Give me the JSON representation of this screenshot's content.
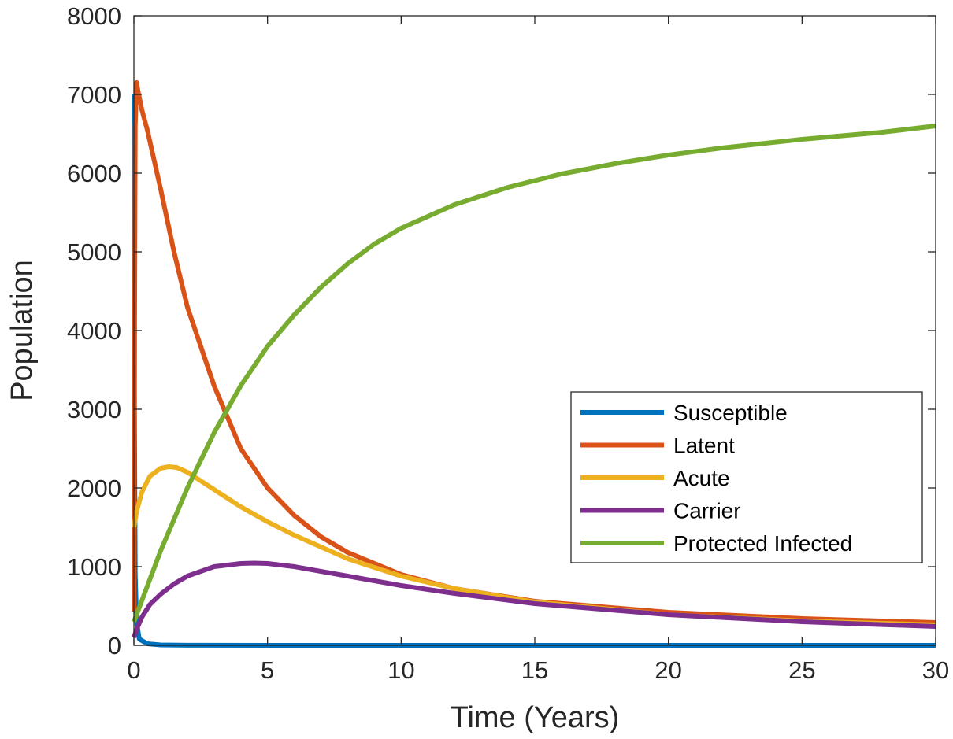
{
  "chart_data": {
    "type": "line",
    "title": "",
    "xlabel": "Time (Years)",
    "ylabel": "Population",
    "xlim": [
      0,
      30
    ],
    "ylim": [
      0,
      8000
    ],
    "xticks": [
      0,
      5,
      10,
      15,
      20,
      25,
      30
    ],
    "yticks": [
      0,
      1000,
      2000,
      3000,
      4000,
      5000,
      6000,
      7000,
      8000
    ],
    "xtick_labels": [
      "0",
      "5",
      "10",
      "15",
      "20",
      "25",
      "30"
    ],
    "ytick_labels": [
      "0",
      "1000",
      "2000",
      "3000",
      "4000",
      "5000",
      "6000",
      "7000",
      "8000"
    ],
    "grid": false,
    "legend_position": "right",
    "series": [
      {
        "name": "Susceptible",
        "color": "#0072BD",
        "x": [
          0,
          0.02,
          0.05,
          0.1,
          0.2,
          0.5,
          1,
          2,
          5,
          10,
          15,
          20,
          25,
          30
        ],
        "y": [
          7000,
          3000,
          900,
          300,
          80,
          20,
          5,
          1,
          0,
          0,
          0,
          0,
          0,
          0
        ]
      },
      {
        "name": "Latent",
        "color": "#D95319",
        "x": [
          0,
          0.02,
          0.05,
          0.1,
          0.15,
          0.3,
          0.5,
          1,
          1.5,
          2,
          3,
          4,
          5,
          6,
          7,
          8,
          10,
          12,
          15,
          20,
          25,
          30
        ],
        "y": [
          430,
          3500,
          6600,
          7150,
          7050,
          6800,
          6550,
          5800,
          5000,
          4300,
          3300,
          2500,
          2000,
          1650,
          1380,
          1180,
          900,
          720,
          560,
          420,
          340,
          290
        ]
      },
      {
        "name": "Acute",
        "color": "#EDB120",
        "x": [
          0,
          0.1,
          0.3,
          0.6,
          1,
          1.3,
          1.6,
          2,
          3,
          4,
          5,
          6,
          8,
          10,
          12,
          15,
          20,
          25,
          30
        ],
        "y": [
          1500,
          1700,
          1950,
          2150,
          2250,
          2270,
          2260,
          2200,
          1980,
          1760,
          1570,
          1400,
          1100,
          880,
          720,
          550,
          390,
          310,
          260
        ]
      },
      {
        "name": "Carrier",
        "color": "#7E2F8E",
        "x": [
          0,
          0.1,
          0.3,
          0.6,
          1,
          1.5,
          2,
          3,
          4,
          4.5,
          5,
          6,
          8,
          10,
          12,
          15,
          20,
          25,
          30
        ],
        "y": [
          100,
          200,
          360,
          520,
          650,
          780,
          880,
          1000,
          1040,
          1045,
          1040,
          1000,
          880,
          760,
          660,
          530,
          390,
          300,
          240
        ]
      },
      {
        "name": "Protected Infected",
        "color": "#77AC30",
        "x": [
          0,
          1,
          2,
          3,
          4,
          5,
          6,
          7,
          8,
          9,
          10,
          12,
          14,
          16,
          18,
          20,
          22,
          25,
          28,
          30
        ],
        "y": [
          300,
          1200,
          2000,
          2700,
          3300,
          3800,
          4200,
          4550,
          4850,
          5100,
          5300,
          5600,
          5820,
          5990,
          6120,
          6230,
          6320,
          6430,
          6520,
          6600
        ]
      }
    ]
  }
}
